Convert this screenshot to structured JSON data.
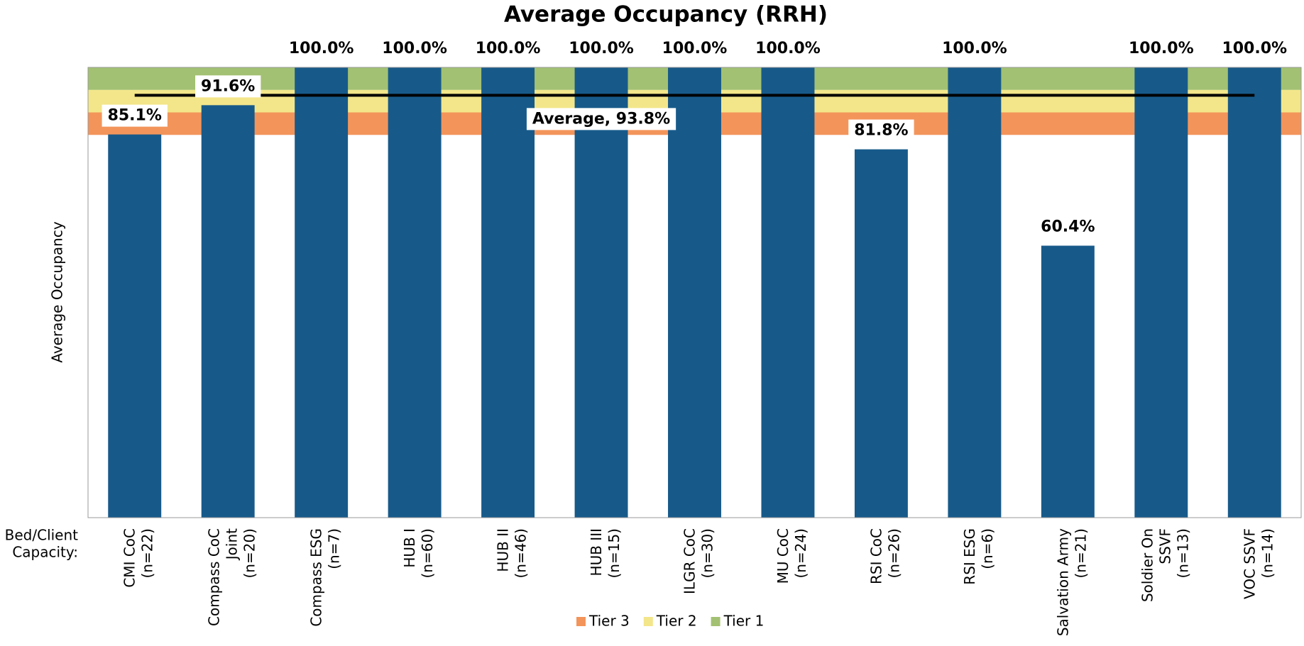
{
  "chart_data": {
    "type": "bar",
    "title": "Average Occupancy (RRH)",
    "y_axis_label": "Average Occupancy",
    "x_axis_label": [
      "Bed/Client",
      "Capacity:"
    ],
    "categories": [
      [
        "CMI CoC",
        "(n=22)"
      ],
      [
        "Compass CoC",
        "Joint",
        "(n=20)"
      ],
      [
        "Compass ESG",
        "(n=7)"
      ],
      [
        "HUB I",
        "(n=60)"
      ],
      [
        "HUB II",
        "(n=46)"
      ],
      [
        "HUB III",
        "(n=15)"
      ],
      [
        "ILGR CoC",
        "(n=30)"
      ],
      [
        "MU CoC",
        "(n=24)"
      ],
      [
        "RSI CoC",
        "(n=26)"
      ],
      [
        "RSI ESG",
        "(n=6)"
      ],
      [
        "Salvation Army",
        "(n=21)"
      ],
      [
        "Soldier On",
        "SSVF",
        "(n=13)"
      ],
      [
        "VOC SSVF",
        "(n=14)"
      ]
    ],
    "values": [
      85.1,
      91.6,
      100,
      100,
      100,
      100,
      100,
      100,
      81.8,
      100,
      60.4,
      100,
      100
    ],
    "value_labels": [
      "85.1%",
      "91.6%",
      "100.0%",
      "100.0%",
      "100.0%",
      "100.0%",
      "100.0%",
      "100.0%",
      "81.8%",
      "100.0%",
      "60.4%",
      "100.0%",
      "100.0%"
    ],
    "color": "#175a8a",
    "ylim": [
      0,
      100
    ],
    "bands": [
      {
        "name": "Tier 3",
        "range": [
          85,
          90
        ],
        "color": "#f3955b"
      },
      {
        "name": "Tier 2",
        "range": [
          90,
          95
        ],
        "color": "#f3e68a"
      },
      {
        "name": "Tier 1",
        "range": [
          95,
          100
        ],
        "color": "#a3c172"
      }
    ],
    "average": {
      "value": 93.8,
      "label": "Average, 93.8%"
    }
  }
}
